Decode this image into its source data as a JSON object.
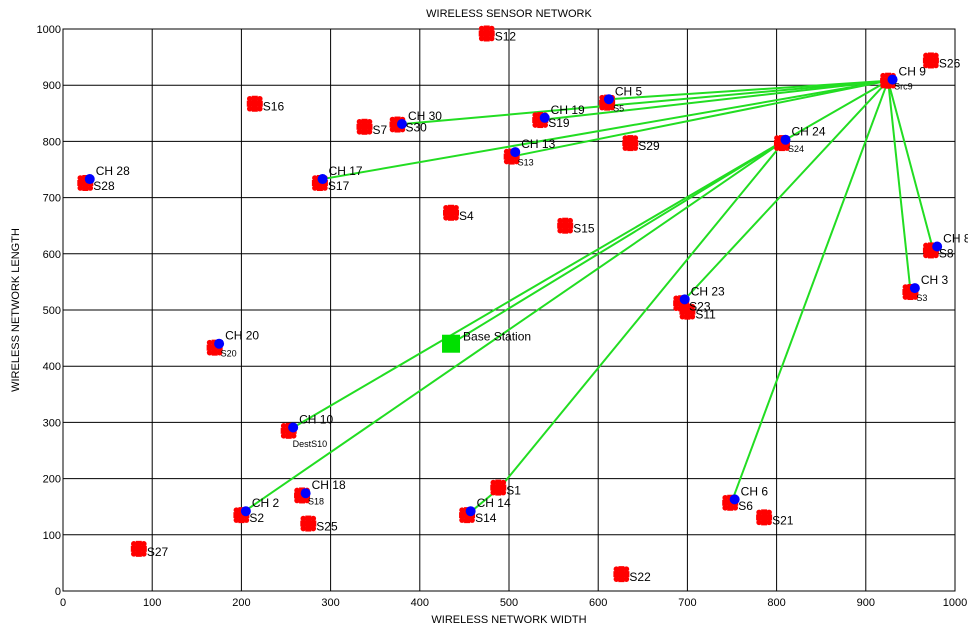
{
  "chart_data": {
    "type": "scatter",
    "title": "WIRELESS SENSOR NETWORK",
    "xlabel": "WIRELESS NETWORK WIDTH",
    "ylabel": "WIRELESS NETWORK LENGTH",
    "xlim": [
      0,
      1000
    ],
    "ylim": [
      0,
      1000
    ],
    "xticks": [
      "0",
      "100",
      "200",
      "300",
      "400",
      "500",
      "600",
      "700",
      "800",
      "900",
      "1000"
    ],
    "yticks": [
      "0",
      "100",
      "200",
      "300",
      "400",
      "500",
      "600",
      "700",
      "800",
      "900",
      "1000"
    ],
    "grid": true,
    "colors": {
      "sensor": "#ff0000",
      "cluster_head": "#0000ff",
      "base_station": "#00e000",
      "link": "#22dd22",
      "grid": "#000000"
    },
    "sensors": [
      {
        "label": "S12",
        "x": 475,
        "y": 992
      },
      {
        "label": "S26",
        "x": 973,
        "y": 944
      },
      {
        "label": "S16",
        "x": 215,
        "y": 867
      },
      {
        "label": "S7",
        "x": 338,
        "y": 826
      },
      {
        "label": "S5",
        "x": 610,
        "y": 869
      },
      {
        "label": "S29",
        "x": 636,
        "y": 797
      },
      {
        "label": "S13",
        "x": 503,
        "y": 773
      },
      {
        "label": "S24",
        "x": 806,
        "y": 797
      },
      {
        "label": "S28",
        "x": 25,
        "y": 726
      },
      {
        "label": "S17",
        "x": 288,
        "y": 726
      },
      {
        "label": "S4",
        "x": 435,
        "y": 673
      },
      {
        "label": "S15",
        "x": 563,
        "y": 650
      },
      {
        "label": "S8",
        "x": 973,
        "y": 606
      },
      {
        "label": "S3",
        "x": 950,
        "y": 532
      },
      {
        "label": "S11",
        "x": 700,
        "y": 497
      },
      {
        "label": "S20",
        "x": 170,
        "y": 433
      },
      {
        "label": "S10",
        "x": 253,
        "y": 285
      },
      {
        "label": "S1",
        "x": 488,
        "y": 184
      },
      {
        "label": "S18",
        "x": 268,
        "y": 170
      },
      {
        "label": "S6",
        "x": 748,
        "y": 157
      },
      {
        "label": "S2",
        "x": 200,
        "y": 135
      },
      {
        "label": "S14",
        "x": 453,
        "y": 135
      },
      {
        "label": "S21",
        "x": 786,
        "y": 131
      },
      {
        "label": "S25",
        "x": 275,
        "y": 120
      },
      {
        "label": "S27",
        "x": 85,
        "y": 75
      },
      {
        "label": "S22",
        "x": 626,
        "y": 30
      },
      {
        "label": "S9",
        "x": 925,
        "y": 908
      },
      {
        "label": "S19",
        "x": 535,
        "y": 838
      },
      {
        "label": "S30",
        "x": 375,
        "y": 830
      },
      {
        "label": "S23",
        "x": 693,
        "y": 512
      }
    ],
    "cluster_heads": [
      {
        "label": "CH 9",
        "x": 930,
        "y": 910
      },
      {
        "label": "CH 5",
        "x": 612,
        "y": 875
      },
      {
        "label": "CH 30",
        "x": 380,
        "y": 831
      },
      {
        "label": "CH 19",
        "x": 540,
        "y": 842
      },
      {
        "label": "CH 24",
        "x": 810,
        "y": 803
      },
      {
        "label": "CH 13",
        "x": 507,
        "y": 781
      },
      {
        "label": "CH 28",
        "x": 30,
        "y": 733
      },
      {
        "label": "CH 17",
        "x": 291,
        "y": 733
      },
      {
        "label": "CH 8",
        "x": 980,
        "y": 613
      },
      {
        "label": "CH 3",
        "x": 955,
        "y": 539
      },
      {
        "label": "CH 23",
        "x": 697,
        "y": 519
      },
      {
        "label": "CH 20",
        "x": 175,
        "y": 440
      },
      {
        "label": "CH 10",
        "x": 258,
        "y": 291
      },
      {
        "label": "CH 18",
        "x": 272,
        "y": 174
      },
      {
        "label": "CH 6",
        "x": 753,
        "y": 163
      },
      {
        "label": "CH 2",
        "x": 205,
        "y": 142
      },
      {
        "label": "CH 14",
        "x": 457,
        "y": 142
      }
    ],
    "base_station": {
      "label": "Base Station",
      "x": 435,
      "y": 440
    },
    "small_labels": [
      {
        "text": "S5",
        "x": 610,
        "y": 869
      },
      {
        "text": "Src9",
        "x": 925,
        "y": 908
      },
      {
        "text": "S13",
        "x": 503,
        "y": 773
      },
      {
        "text": "S24",
        "x": 806,
        "y": 797
      },
      {
        "text": "S3",
        "x": 950,
        "y": 532
      },
      {
        "text": "S20",
        "x": 170,
        "y": 433
      },
      {
        "text": "DestS10",
        "x": 253,
        "y": 285
      },
      {
        "text": "S18",
        "x": 268,
        "y": 170
      }
    ],
    "links": [
      {
        "from": [
          925,
          908
        ],
        "to": [
          375,
          830
        ]
      },
      {
        "from": [
          925,
          908
        ],
        "to": [
          535,
          838
        ]
      },
      {
        "from": [
          925,
          908
        ],
        "to": [
          612,
          875
        ]
      },
      {
        "from": [
          925,
          908
        ],
        "to": [
          503,
          773
        ]
      },
      {
        "from": [
          925,
          908
        ],
        "to": [
          291,
          733
        ]
      },
      {
        "from": [
          925,
          908
        ],
        "to": [
          810,
          803
        ]
      },
      {
        "from": [
          925,
          908
        ],
        "to": [
          975,
          610
        ]
      },
      {
        "from": [
          925,
          908
        ],
        "to": [
          950,
          535
        ]
      },
      {
        "from": [
          925,
          908
        ],
        "to": [
          750,
          160
        ]
      },
      {
        "from": [
          925,
          908
        ],
        "to": [
          693,
          512
        ]
      },
      {
        "from": [
          810,
          803
        ],
        "to": [
          435,
          440
        ]
      },
      {
        "from": [
          810,
          803
        ],
        "to": [
          255,
          288
        ]
      },
      {
        "from": [
          810,
          803
        ],
        "to": [
          200,
          138
        ]
      },
      {
        "from": [
          810,
          803
        ],
        "to": [
          490,
          184
        ]
      },
      {
        "from": [
          490,
          184
        ],
        "to": [
          455,
          138
        ]
      }
    ]
  }
}
